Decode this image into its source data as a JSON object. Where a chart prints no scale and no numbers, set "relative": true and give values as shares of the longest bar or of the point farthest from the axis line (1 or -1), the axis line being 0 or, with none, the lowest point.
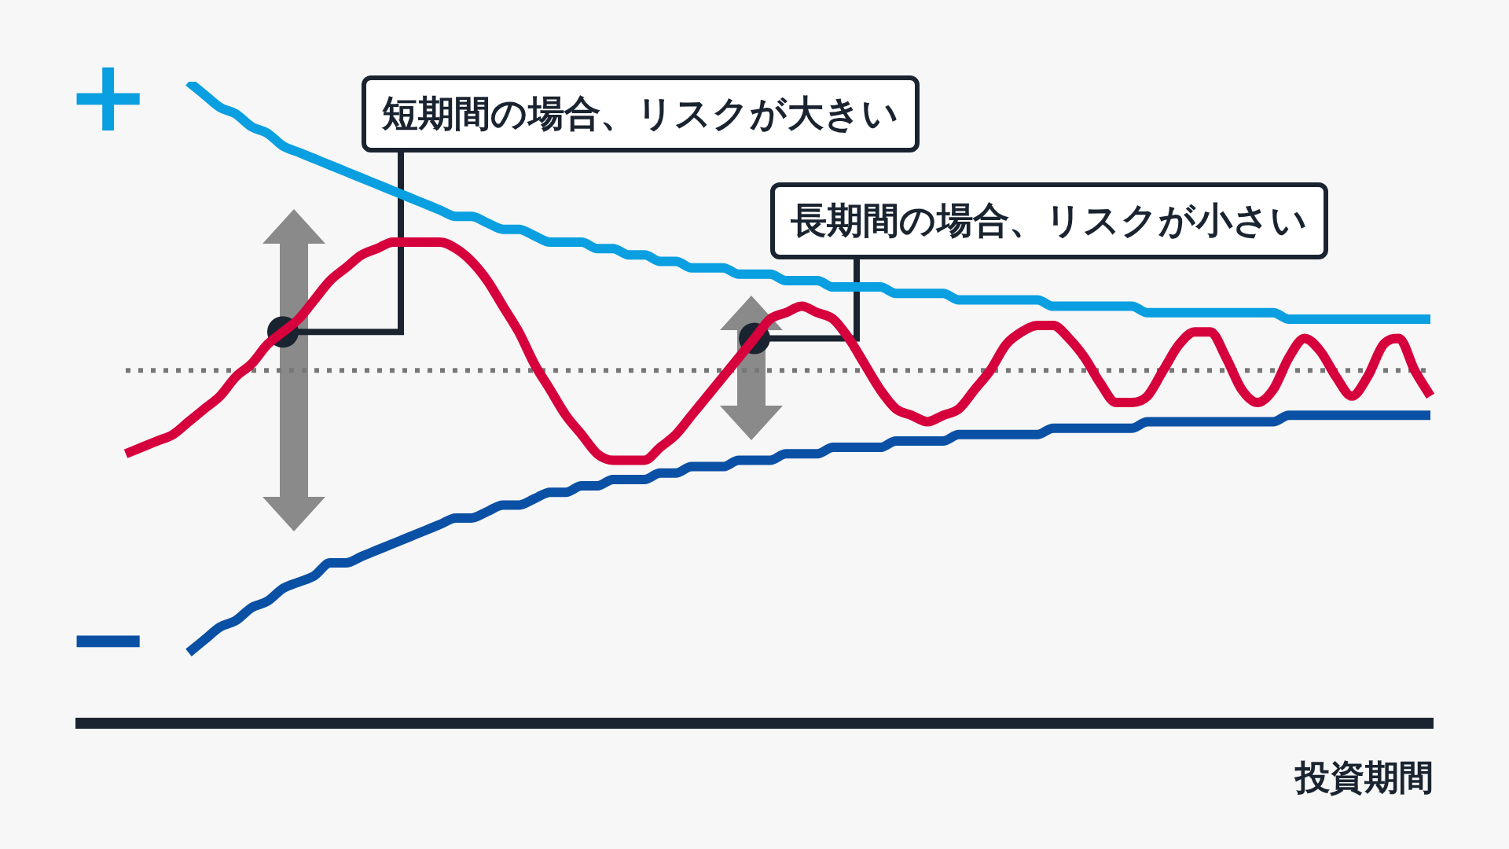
{
  "chart_data": {
    "type": "line",
    "relative": true,
    "xlabel": "投資期間",
    "categories": [
      null,
      null,
      null,
      null,
      null,
      null,
      null,
      null,
      null,
      null,
      null,
      null,
      null,
      null,
      null,
      null,
      null,
      null,
      null,
      null,
      null,
      null,
      null,
      null,
      null,
      null,
      null,
      null,
      null,
      null,
      null,
      null,
      null,
      null,
      null,
      null,
      null,
      null,
      null,
      null,
      null,
      null,
      null,
      null,
      null,
      null,
      null,
      null,
      null,
      null,
      null,
      null,
      null,
      null,
      null,
      null,
      null,
      null,
      null,
      null,
      null,
      null,
      null,
      null,
      null,
      null,
      null,
      null,
      null,
      null,
      null,
      null,
      null,
      null,
      null,
      null,
      null,
      null,
      null,
      null,
      null,
      null,
      null,
      null
    ],
    "series": [
      {
        "color": "#0a9fe0",
        "values": [
          null,
          null,
          null,
          null,
          1,
          0.98,
          0.96,
          0.95,
          0.93,
          0.92,
          0.9,
          0.89,
          0.88,
          0.87,
          0.86,
          0.85,
          0.84,
          0.83,
          0.82,
          0.81,
          0.8,
          0.79,
          0.79,
          0.78,
          0.77,
          0.77,
          0.76,
          0.75,
          0.75,
          0.75,
          0.74,
          0.74,
          0.73,
          0.73,
          0.72,
          0.72,
          0.71,
          0.71,
          0.71,
          0.7,
          0.7,
          0.7,
          0.69,
          0.69,
          0.69,
          0.68,
          0.68,
          0.68,
          0.68,
          0.67,
          0.67,
          0.67,
          0.67,
          0.66,
          0.66,
          0.66,
          0.66,
          0.66,
          0.66,
          0.65,
          0.65,
          0.65,
          0.65,
          0.65,
          0.65,
          0.64,
          0.64,
          0.64,
          0.64,
          0.64,
          0.64,
          0.64,
          0.64,
          0.64,
          0.63,
          0.63,
          0.63,
          0.63,
          0.63,
          0.63,
          0.63,
          0.63,
          0.63,
          0.63
        ]
      },
      {
        "color": "#0a50a5",
        "values": [
          null,
          null,
          null,
          null,
          0.11,
          0.13,
          0.15,
          0.16,
          0.18,
          0.19,
          0.21,
          0.22,
          0.23,
          0.25,
          0.25,
          0.26,
          0.27,
          0.28,
          0.29,
          0.3,
          0.31,
          0.32,
          0.32,
          0.33,
          0.34,
          0.34,
          0.35,
          0.36,
          0.36,
          0.37,
          0.37,
          0.38,
          0.38,
          0.38,
          0.39,
          0.39,
          0.4,
          0.4,
          0.4,
          0.41,
          0.41,
          0.41,
          0.42,
          0.42,
          0.42,
          0.43,
          0.43,
          0.43,
          0.43,
          0.44,
          0.44,
          0.44,
          0.44,
          0.45,
          0.45,
          0.45,
          0.45,
          0.45,
          0.45,
          0.46,
          0.46,
          0.46,
          0.46,
          0.46,
          0.46,
          0.47,
          0.47,
          0.47,
          0.47,
          0.47,
          0.47,
          0.47,
          0.47,
          0.47,
          0.48,
          0.48,
          0.48,
          0.48,
          0.48,
          0.48,
          0.48,
          0.48,
          0.48,
          0.48
        ]
      },
      {
        "color": "#d6003c",
        "values": [
          0.42,
          0.43,
          0.44,
          0.45,
          0.47,
          0.49,
          0.51,
          0.54,
          0.56,
          0.59,
          0.61,
          0.63,
          0.66,
          0.69,
          0.71,
          0.73,
          0.74,
          0.75,
          0.75,
          0.75,
          0.75,
          0.74,
          0.72,
          0.69,
          0.65,
          0.61,
          0.56,
          0.52,
          0.48,
          0.45,
          0.42,
          0.41,
          0.41,
          0.41,
          0.43,
          0.45,
          0.48,
          0.51,
          0.54,
          0.57,
          0.6,
          0.63,
          0.64,
          0.65,
          0.64,
          0.63,
          0.6,
          0.56,
          0.52,
          0.49,
          0.48,
          0.47,
          0.48,
          0.49,
          0.52,
          0.55,
          0.59,
          0.61,
          0.62,
          0.62,
          0.6,
          0.57,
          0.53,
          0.5,
          0.5,
          0.51,
          0.55,
          0.59,
          0.61,
          0.61,
          0.57,
          0.52,
          0.5,
          0.52,
          0.57,
          0.6,
          0.58,
          0.54,
          0.51,
          0.54,
          0.59,
          0.6,
          0.55,
          0.51
        ]
      }
    ],
    "ref_lines": [
      {
        "axis": "y",
        "value": 0.55,
        "color": "#777777",
        "line_style": "dotted"
      }
    ],
    "annotations": [
      "+",
      "−",
      "短期間の場合、リスクが大きい",
      "長期間の場合、リスクが小さい"
    ]
  }
}
